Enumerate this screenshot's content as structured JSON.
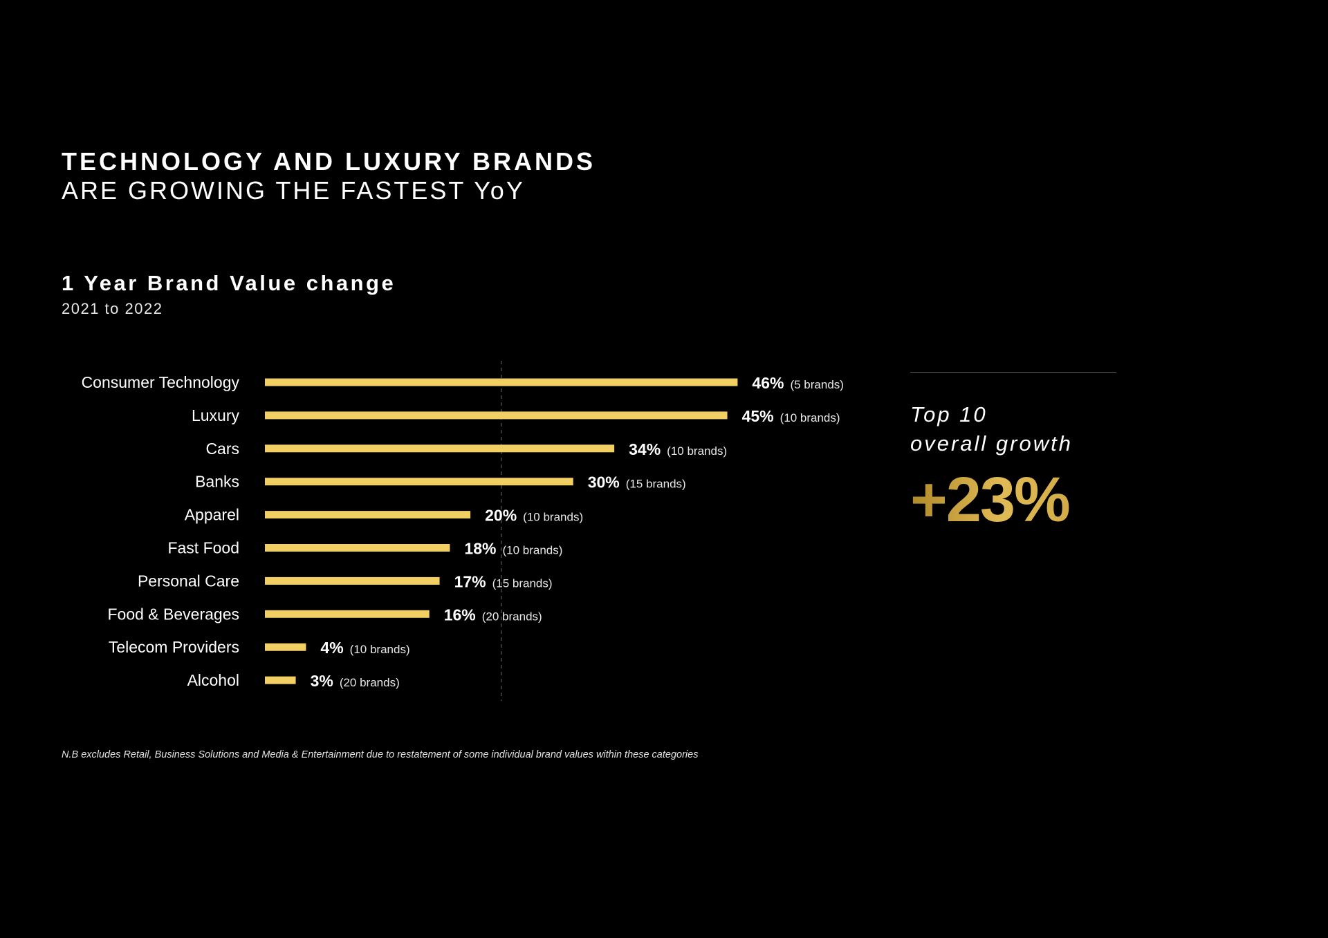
{
  "headline": {
    "line1": "TECHNOLOGY AND LUXURY BRANDS",
    "line2": "ARE GROWING THE FASTEST YoY"
  },
  "chart_data": {
    "type": "bar",
    "orientation": "horizontal",
    "title": "1 Year Brand Value change",
    "subtitle": "2021 to 2022",
    "categories": [
      "Consumer Technology",
      "Luxury",
      "Cars",
      "Banks",
      "Apparel",
      "Fast Food",
      "Personal Care",
      "Food & Beverages",
      "Telecom Providers",
      "Alcohol"
    ],
    "values": [
      46,
      45,
      34,
      30,
      20,
      18,
      17,
      16,
      4,
      3
    ],
    "value_labels": [
      "46%",
      "45%",
      "34%",
      "30%",
      "20%",
      "18%",
      "17%",
      "16%",
      "4%",
      "3%"
    ],
    "brand_counts": [
      "(5 brands)",
      "(10 brands)",
      "(10 brands)",
      "(15 brands)",
      "(10 brands)",
      "(10 brands)",
      "(15 brands)",
      "(20 brands)",
      "(10 brands)",
      "(20 brands)"
    ],
    "reference_line": 23,
    "xlim": [
      0,
      46
    ],
    "bar_color": "#f2cf63",
    "grid": false
  },
  "summary": {
    "label_line1": "Top 10",
    "label_line2": "overall growth",
    "value": "+23%",
    "accent_color": "#d4ad45"
  },
  "footnote": "N.B excludes Retail, Business Solutions and Media & Entertainment due to restatement of some individual brand values within these categories"
}
